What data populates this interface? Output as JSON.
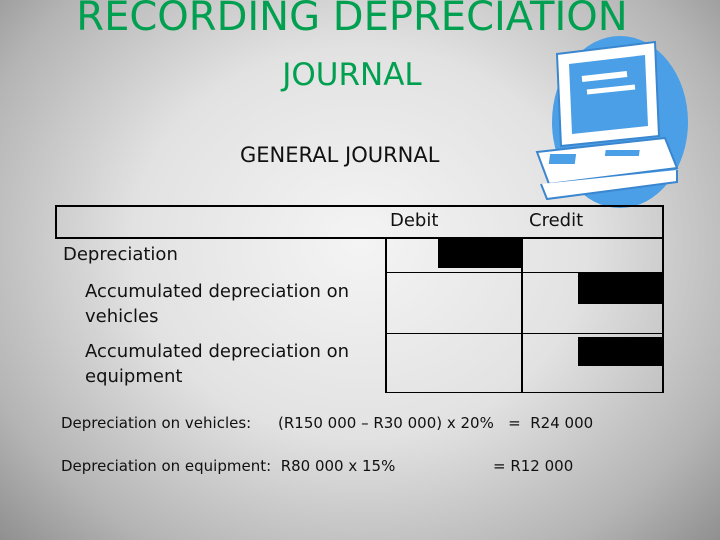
{
  "slide": {
    "title_line1": "RECORDING DEPRECIATION",
    "title_line2": "JOURNAL",
    "subtitle": "GENERAL JOURNAL"
  },
  "journal": {
    "headers": {
      "debit": "Debit",
      "credit": "Credit"
    },
    "rows": [
      {
        "account": "Depreciation"
      },
      {
        "account_line1": "Accumulated depreciation on",
        "account_line2": "vehicles"
      },
      {
        "account_line1": "Accumulated depreciation on",
        "account_line2": "equipment"
      }
    ]
  },
  "calculations": {
    "vehicles_label": "Depreciation on vehicles:",
    "vehicles_formula": "(R150 000 – R30 000) x 20%   =  R24 000",
    "equipment_label": "Depreciation on equipment:  R80 000 x 15%",
    "equipment_result": "= R12 000"
  },
  "colors": {
    "title": "#00a050",
    "clipart_blue": "#4a9fe6"
  },
  "icons": {
    "clipart": "computer-monitor-icon"
  }
}
